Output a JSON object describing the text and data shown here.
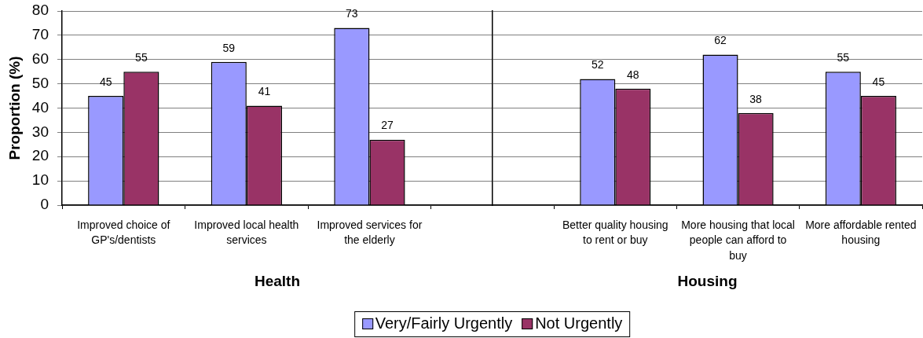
{
  "chart_data": [
    {
      "type": "bar",
      "ylabel": "Proportion (%)",
      "xlabel": "Health",
      "categories": [
        "Improved choice of GP's/dentists",
        "Improved local health services",
        "Improved services for the elderly"
      ],
      "series": [
        {
          "name": "Very/Fairly Urgently",
          "color": "#9999ff",
          "values": [
            45,
            59,
            73
          ]
        },
        {
          "name": "Not Urgently",
          "color": "#993366",
          "values": [
            55,
            41,
            27
          ]
        }
      ],
      "ylim": [
        0,
        80
      ],
      "yticks": [
        0,
        10,
        20,
        30,
        40,
        50,
        60,
        70,
        80
      ],
      "grid": "y",
      "legend": "bottom",
      "data_labels": true
    },
    {
      "type": "bar",
      "xlabel": "Housing",
      "categories": [
        "Better quality housing to rent or buy",
        "More housing that local people can afford to buy",
        "More affordable rented housing"
      ],
      "series": [
        {
          "color": "#9999ff",
          "values": [
            52,
            62,
            55
          ]
        },
        {
          "color": "#993366",
          "values": [
            48,
            38,
            45
          ]
        }
      ],
      "ylim": [
        0,
        80
      ],
      "yticks": [
        0,
        10,
        20,
        30,
        40,
        50,
        60,
        70,
        80
      ],
      "grid": "y",
      "tick_labels": "x",
      "data_labels": true
    }
  ]
}
